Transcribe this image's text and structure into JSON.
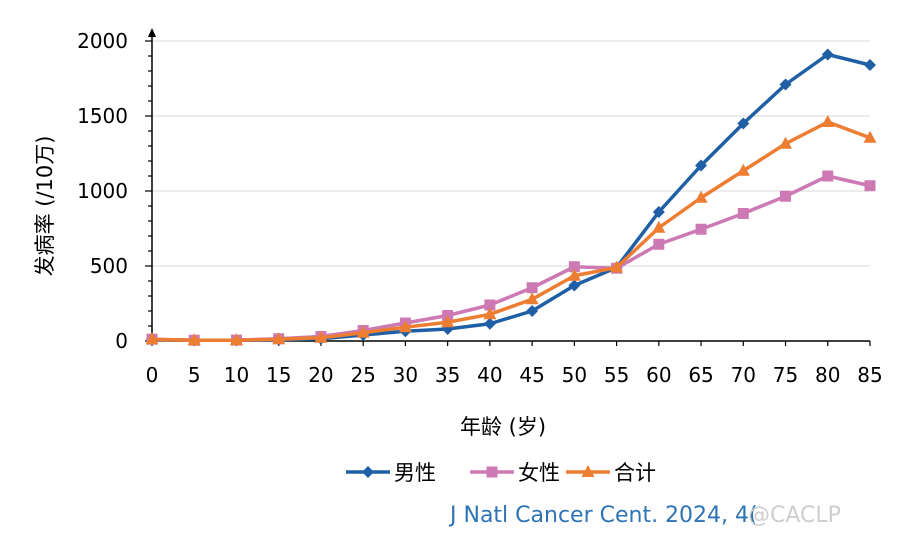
{
  "chart_data": {
    "type": "line",
    "xlabel": "年龄 (岁)",
    "ylabel": "发病率 (/10万)",
    "categories": [
      "0",
      "5",
      "10",
      "15",
      "20",
      "25",
      "30",
      "35",
      "40",
      "45",
      "50",
      "55",
      "60",
      "65",
      "70",
      "75",
      "80",
      "85"
    ],
    "ylim": [
      0,
      2000
    ],
    "yticks": [
      0,
      500,
      1000,
      1500,
      2000
    ],
    "grid": true,
    "legend_position": "bottom",
    "series": [
      {
        "name": "男性",
        "color": "#1f5fa6",
        "marker": "diamond",
        "values": [
          10,
          5,
          5,
          8,
          15,
          40,
          65,
          80,
          115,
          200,
          370,
          490,
          860,
          1170,
          1450,
          1710,
          1910,
          1840
        ]
      },
      {
        "name": "女性",
        "color": "#cc79b4",
        "marker": "square",
        "values": [
          12,
          5,
          6,
          15,
          30,
          70,
          120,
          170,
          240,
          355,
          495,
          485,
          645,
          745,
          850,
          965,
          1100,
          1035
        ]
      },
      {
        "name": "合计",
        "color": "#ed7d31",
        "marker": "triangle",
        "values": [
          11,
          5,
          5,
          12,
          22,
          55,
          92,
          125,
          178,
          278,
          435,
          490,
          755,
          955,
          1135,
          1315,
          1460,
          1355
        ]
      }
    ]
  },
  "source_text": "J Natl Cancer Cent. 2024, 4(",
  "watermark_text": "@CACLP"
}
